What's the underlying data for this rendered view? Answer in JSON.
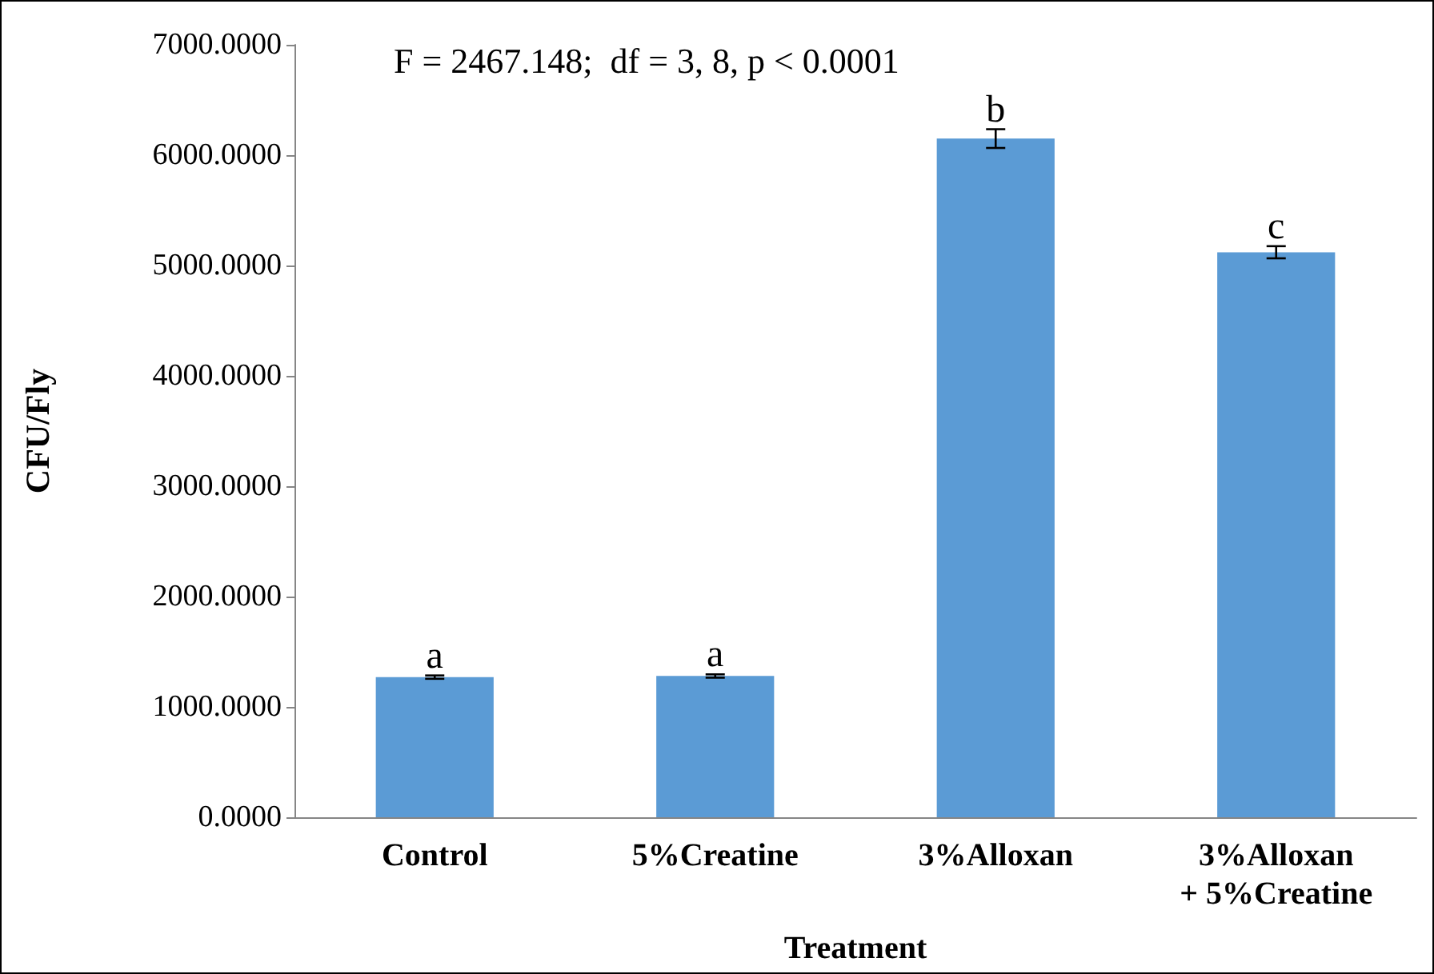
{
  "chart_data": {
    "type": "bar",
    "xlabel": "Treatment",
    "ylabel": "CFU/Fly",
    "categories": [
      "Control",
      "5%Creatine",
      "3%Alloxan",
      "3%Alloxan\n+ 5%Creatine"
    ],
    "values": [
      1270,
      1280,
      6150,
      5120
    ],
    "errors": [
      15,
      15,
      85,
      55
    ],
    "color": "#5b9bd5",
    "ylim": [
      0,
      7000
    ],
    "yticks": [
      {
        "value": 0,
        "label": "0.0000"
      },
      {
        "value": 1000,
        "label": "1000.0000"
      },
      {
        "value": 2000,
        "label": "2000.0000"
      },
      {
        "value": 3000,
        "label": "3000.0000"
      },
      {
        "value": 4000,
        "label": "4000.0000"
      },
      {
        "value": 5000,
        "label": "5000.0000"
      },
      {
        "value": 6000,
        "label": "6000.0000"
      },
      {
        "value": 7000,
        "label": "7000.0000"
      }
    ],
    "grid": false,
    "annotations": [
      "F = 2467.148;  df = 3, 8, p < 0.0001",
      {
        "text": "a",
        "x": "Control",
        "y": 1285
      },
      {
        "text": "a",
        "x": "5%Creatine",
        "y": 1295
      },
      {
        "text": "b",
        "x": "3%Alloxan",
        "y": 6235
      },
      {
        "text": "c",
        "x": "3%Alloxan\n+ 5%Creatine",
        "y": 5175
      }
    ]
  }
}
